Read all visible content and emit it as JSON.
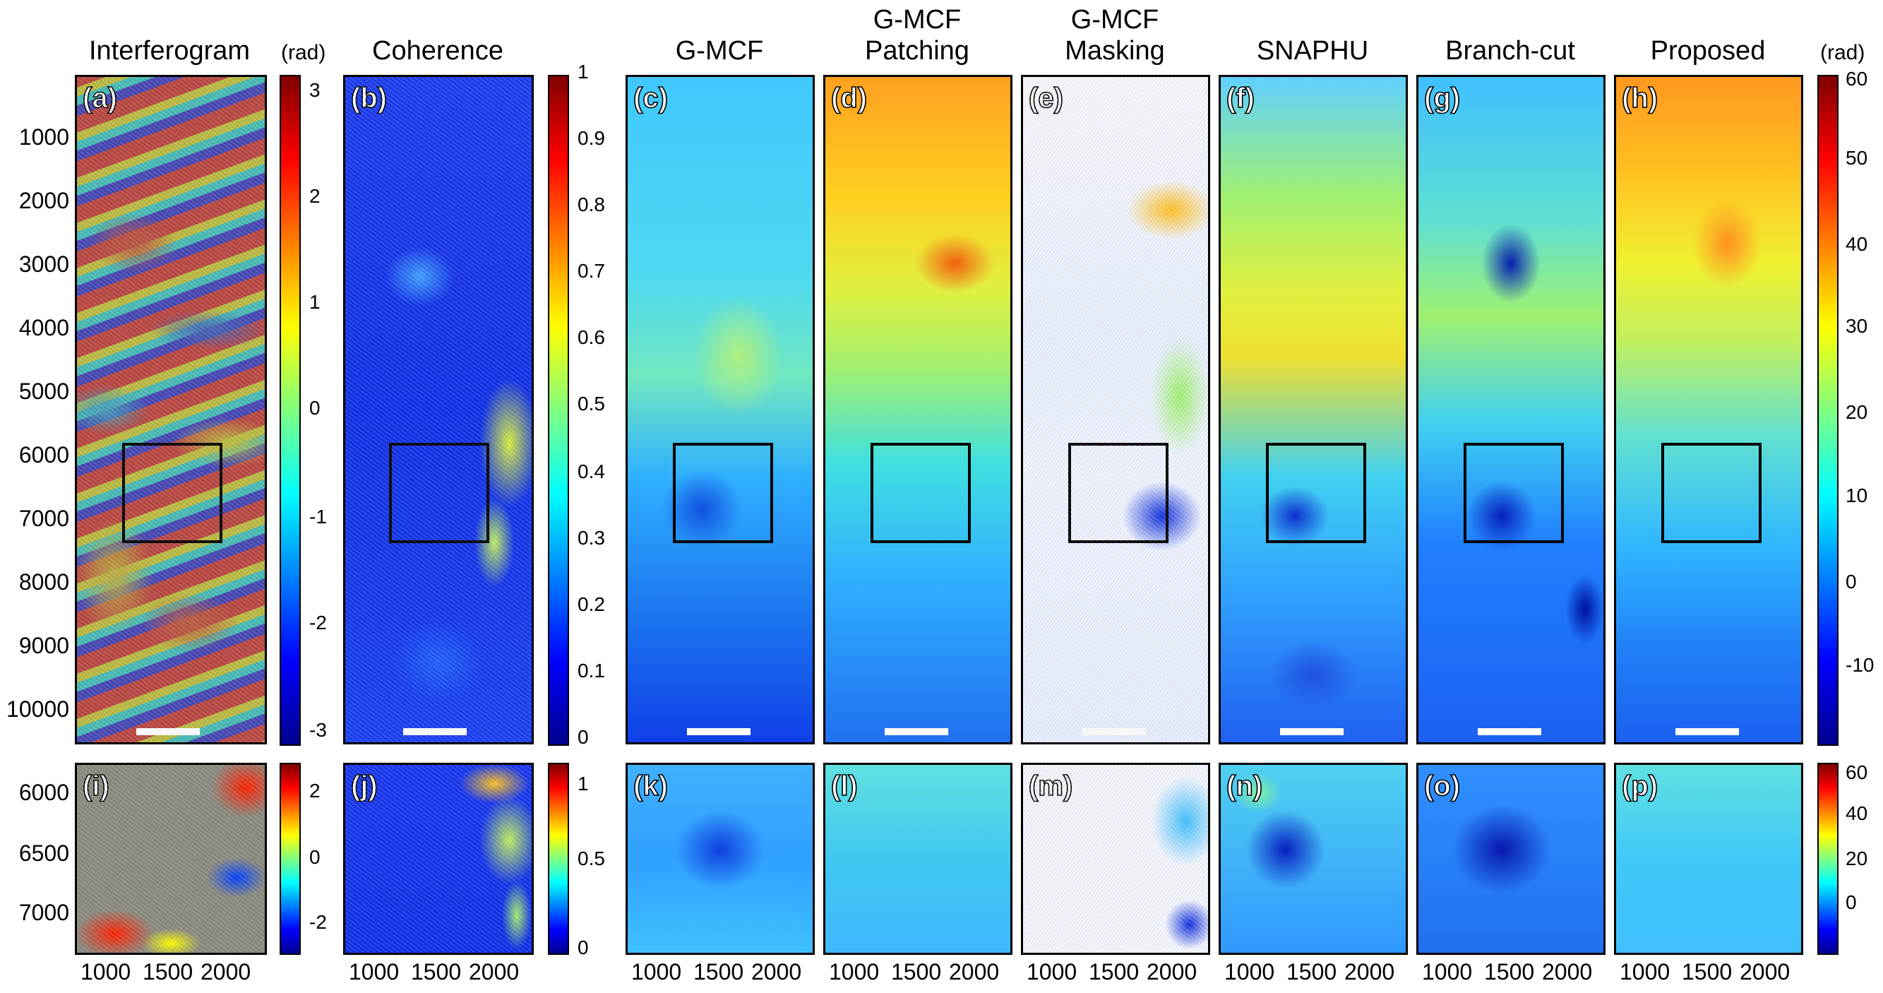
{
  "titles": {
    "interferogram": "Interferogram",
    "coherence": "Coherence",
    "gmcf": "G-MCF",
    "gmcf_patching_1": "G-MCF",
    "gmcf_patching_2": "Patching",
    "gmcf_masking_1": "G-MCF",
    "gmcf_masking_2": "Masking",
    "snaphu": "SNAPHU",
    "branchcut": "Branch-cut",
    "proposed": "Proposed"
  },
  "units": {
    "left": "(rad)",
    "right": "(rad)"
  },
  "panel_labels": [
    "(a)",
    "(b)",
    "(c)",
    "(d)",
    "(e)",
    "(f)",
    "(g)",
    "(h)",
    "(i)",
    "(j)",
    "(k)",
    "(l)",
    "(m)",
    "(n)",
    "(o)",
    "(p)"
  ],
  "yticks_top": [
    "1000",
    "2000",
    "3000",
    "4000",
    "5000",
    "6000",
    "7000",
    "8000",
    "9000",
    "10000"
  ],
  "yticks_bottom": [
    "6000",
    "6500",
    "7000"
  ],
  "xticks": [
    "1000",
    "1500",
    "2000"
  ],
  "colorbar_interferogram_top": [
    "3",
    "2",
    "1",
    "0",
    "-1",
    "-2",
    "-3"
  ],
  "colorbar_coherence_top": [
    "1",
    "0.9",
    "0.8",
    "0.7",
    "0.6",
    "0.5",
    "0.4",
    "0.3",
    "0.2",
    "0.1",
    "0"
  ],
  "colorbar_unwrapped_top": [
    "60",
    "50",
    "40",
    "30",
    "20",
    "10",
    "0",
    "-10"
  ],
  "colorbar_interferogram_bottom": [
    "2",
    "0",
    "-2"
  ],
  "colorbar_coherence_bottom": [
    "1",
    "0.5",
    "0"
  ],
  "colorbar_unwrapped_bottom": [
    "60",
    "40",
    "20",
    "0"
  ],
  "colors": {
    "jet": [
      "#00008f",
      "#0000ff",
      "#0080ff",
      "#00ffff",
      "#80ff80",
      "#ffff00",
      "#ff8000",
      "#ff0000",
      "#800000"
    ]
  }
}
